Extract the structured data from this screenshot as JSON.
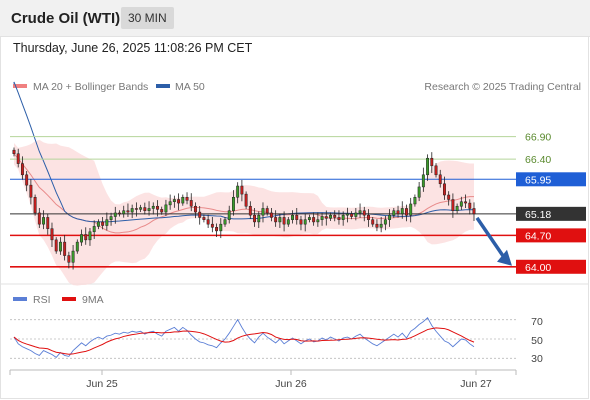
{
  "header": {
    "title": "Crude Oil (WTI)",
    "interval": "30 MIN"
  },
  "datetime": "Thursday, June 26, 2025 11:08:26 PM CET",
  "copyright": "Research © 2025 Trading Central",
  "chart_data": {
    "type": "candlestick",
    "main_legend": [
      {
        "name": "MA 20 + Bollinger Bands",
        "color": "#f08080"
      },
      {
        "name": "MA 50",
        "color": "#2c5ea8"
      }
    ],
    "ylim": [
      63.75,
      67.45
    ],
    "levels": [
      {
        "value": 66.9,
        "label": "66.90",
        "color": "#b5d59a",
        "label_color": "#5a8a2e",
        "style": "text"
      },
      {
        "value": 66.4,
        "label": "66.40",
        "color": "#b5d59a",
        "label_color": "#5a8a2e",
        "style": "text"
      },
      {
        "value": 65.95,
        "label": "65.95",
        "color": "#1f5fd6",
        "label_color": "#ffffff",
        "style": "box"
      },
      {
        "value": 65.18,
        "label": "65.18",
        "color": "#333333",
        "label_color": "#ffffff",
        "style": "box"
      },
      {
        "value": 64.7,
        "label": "64.70",
        "color": "#e01010",
        "label_color": "#ffffff",
        "style": "box"
      },
      {
        "value": 64.0,
        "label": "64.00",
        "color": "#e01010",
        "label_color": "#ffffff",
        "style": "box"
      }
    ],
    "x_ticks": [
      "Jun 25",
      "Jun 26",
      "Jun 27"
    ],
    "arrow": {
      "direction": "down",
      "from": 65.18,
      "to": 64.0
    },
    "rsi": {
      "legend": [
        {
          "name": "RSI",
          "color": "#5b7fd6"
        },
        {
          "name": "9MA",
          "color": "#e01010"
        }
      ],
      "ylim": [
        20,
        80
      ],
      "ticks": [
        70,
        50,
        30
      ]
    },
    "closes": [
      66.52,
      66.3,
      66.05,
      65.82,
      65.55,
      65.2,
      64.95,
      65.1,
      64.85,
      64.6,
      64.35,
      64.55,
      64.25,
      64.1,
      64.35,
      64.55,
      64.72,
      64.6,
      64.78,
      64.9,
      65.0,
      64.92,
      65.05,
      65.12,
      65.2,
      65.18,
      65.25,
      65.22,
      65.3,
      65.28,
      65.32,
      65.25,
      65.3,
      65.35,
      65.28,
      65.22,
      65.38,
      65.45,
      65.5,
      65.42,
      65.55,
      65.48,
      65.35,
      65.22,
      65.1,
      65.05,
      64.95,
      64.88,
      64.8,
      64.95,
      65.05,
      65.25,
      65.55,
      65.8,
      65.62,
      65.35,
      65.15,
      65.0,
      65.15,
      65.3,
      65.2,
      65.1,
      65.0,
      65.1,
      64.95,
      65.05,
      65.15,
      65.05,
      64.95,
      65.05,
      65.1,
      65.0,
      65.05,
      65.12,
      65.08,
      65.15,
      65.1,
      65.05,
      65.15,
      65.18,
      65.12,
      65.2,
      65.25,
      65.15,
      65.05,
      64.95,
      64.88,
      64.95,
      65.05,
      65.15,
      65.25,
      65.18,
      65.3,
      65.15,
      65.4,
      65.55,
      65.78,
      66.05,
      66.42,
      66.25,
      66.05,
      65.85,
      65.6,
      65.5,
      65.25,
      65.35,
      65.45,
      65.42,
      65.3,
      65.18
    ],
    "rsi_values": [
      52,
      45,
      42,
      40,
      38,
      35,
      33,
      38,
      36,
      34,
      31,
      36,
      33,
      32,
      38,
      42,
      46,
      43,
      47,
      50,
      52,
      50,
      53,
      54,
      56,
      55,
      57,
      56,
      58,
      57,
      58,
      55,
      57,
      58,
      55,
      53,
      58,
      60,
      62,
      58,
      62,
      59,
      54,
      50,
      47,
      46,
      44,
      43,
      41,
      46,
      50,
      56,
      63,
      70,
      62,
      55,
      50,
      46,
      52,
      56,
      52,
      49,
      46,
      50,
      45,
      48,
      51,
      48,
      45,
      48,
      50,
      47,
      48,
      51,
      49,
      52,
      50,
      48,
      51,
      52,
      50,
      53,
      55,
      51,
      48,
      45,
      43,
      46,
      49,
      52,
      55,
      52,
      56,
      51,
      58,
      61,
      65,
      68,
      72,
      64,
      58,
      53,
      48,
      46,
      42,
      46,
      50,
      49,
      45,
      42
    ]
  }
}
